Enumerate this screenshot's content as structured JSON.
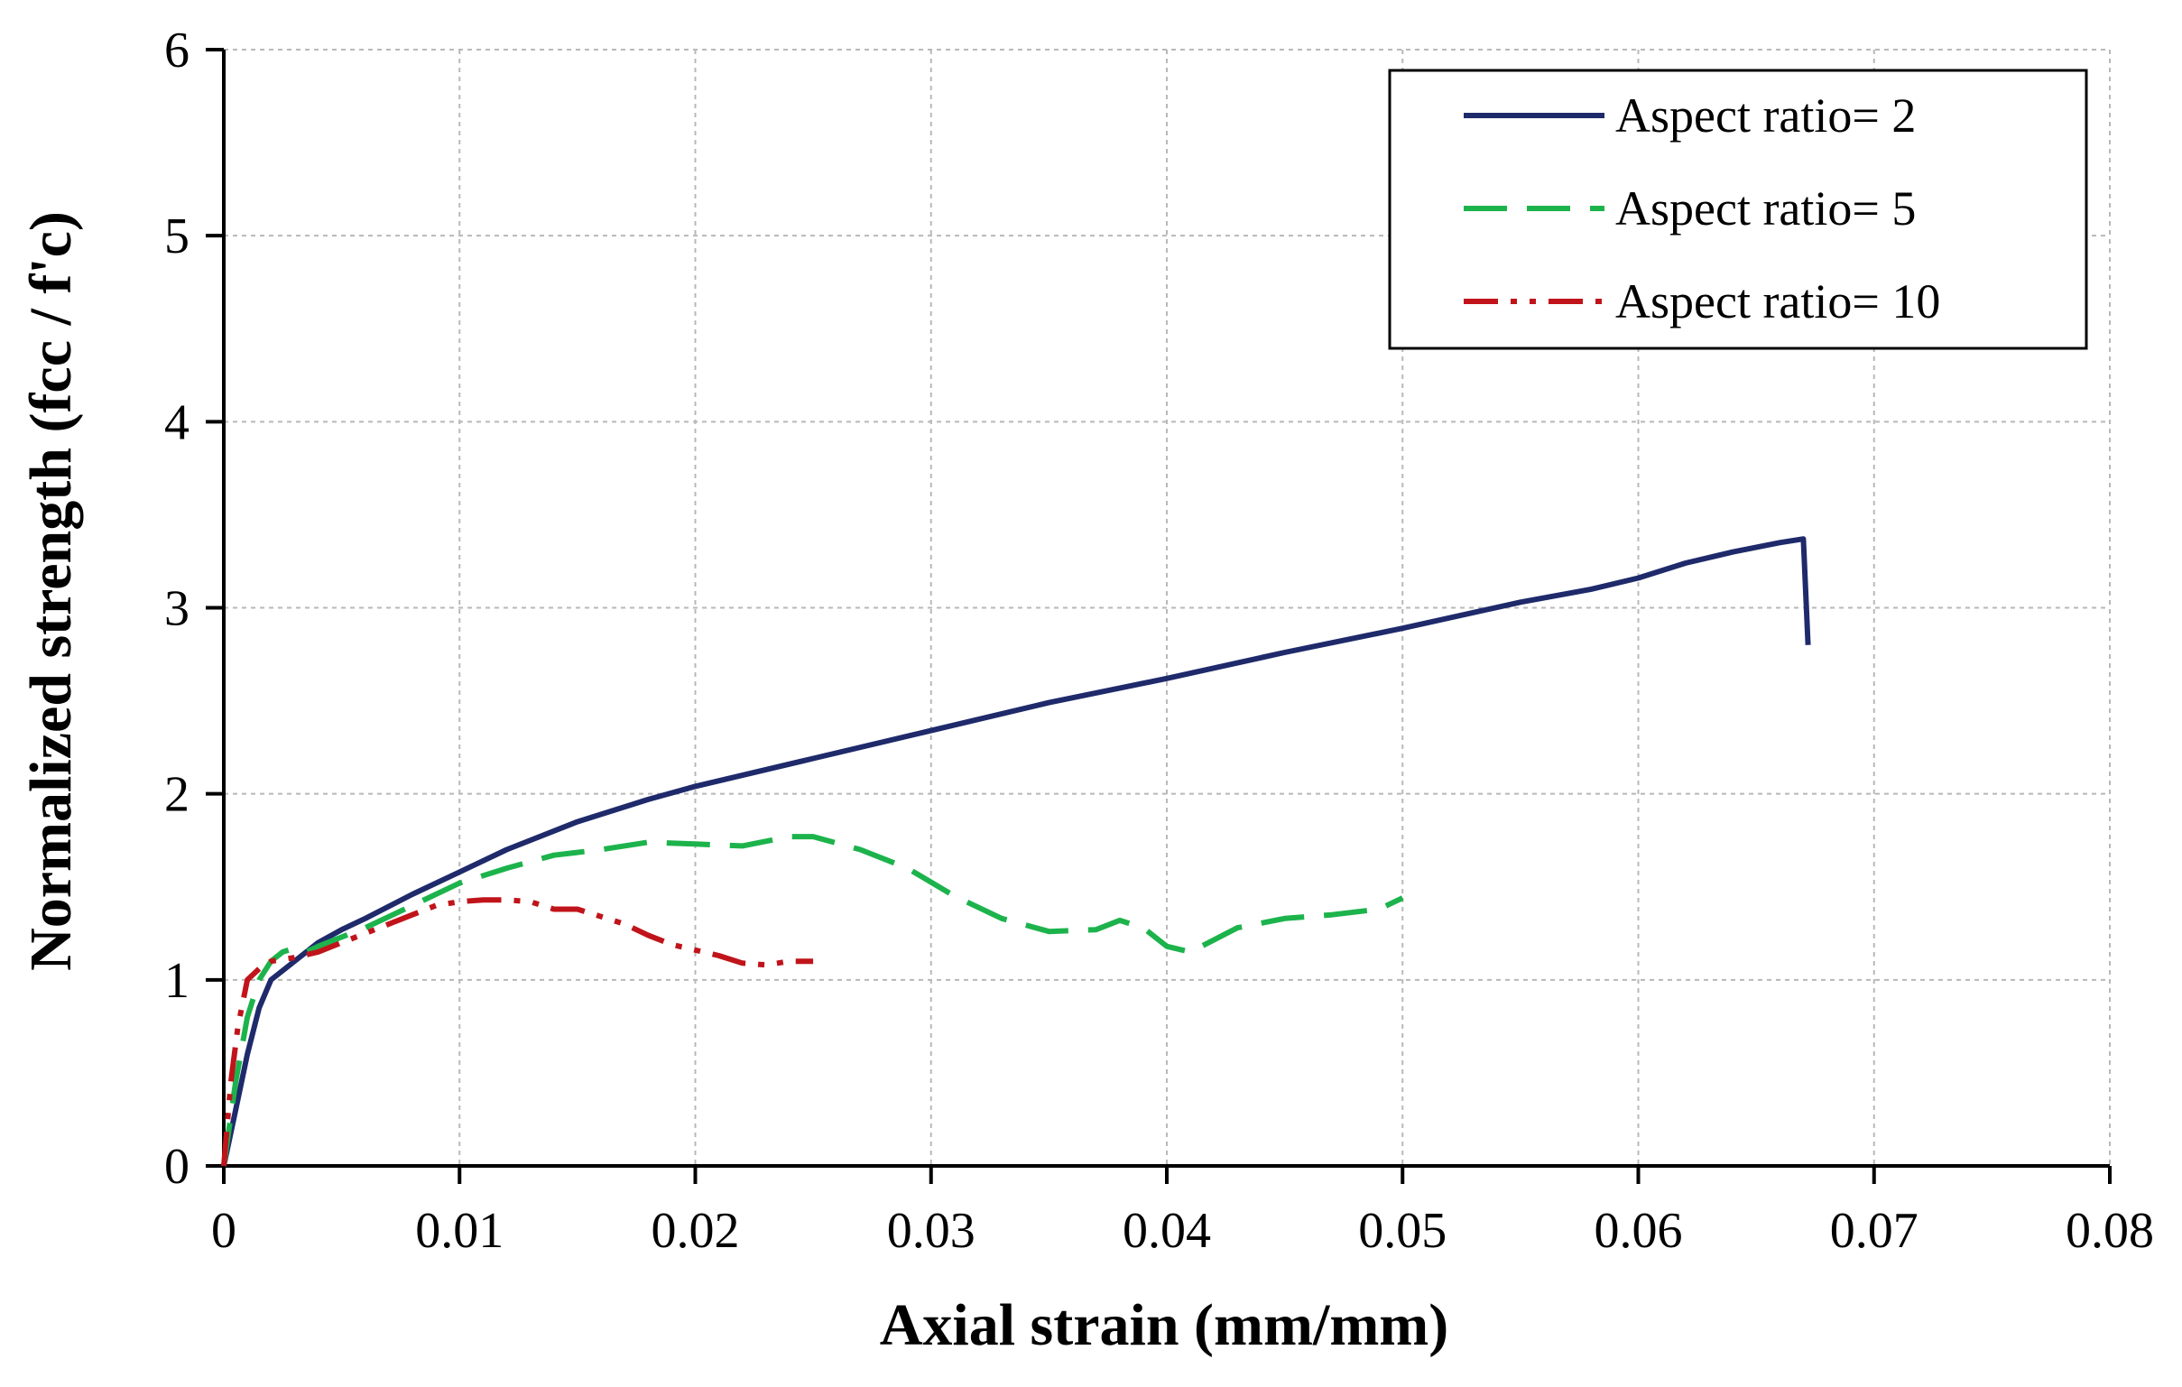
{
  "chart_data": {
    "type": "line",
    "title": "",
    "xlabel": "Axial strain (mm/mm)",
    "ylabel": "Normalized strength (fcc / f'c)",
    "xlim": [
      0,
      0.08
    ],
    "ylim": [
      0,
      6
    ],
    "x_ticks": [
      0,
      0.01,
      0.02,
      0.03,
      0.04,
      0.05,
      0.06,
      0.07,
      0.08
    ],
    "x_tick_labels": [
      "0",
      "0.01",
      "0.02",
      "0.03",
      "0.04",
      "0.05",
      "0.06",
      "0.07",
      "0.08"
    ],
    "y_ticks": [
      0,
      1,
      2,
      3,
      4,
      5,
      6
    ],
    "y_tick_labels": [
      "0",
      "1",
      "2",
      "3",
      "4",
      "5",
      "6"
    ],
    "grid": true,
    "legend_position": "top-right",
    "series": [
      {
        "name": "Aspect ratio= 2",
        "color": "#1f2a6b",
        "dash": "solid",
        "x": [
          0,
          0.0005,
          0.001,
          0.0015,
          0.002,
          0.003,
          0.004,
          0.005,
          0.006,
          0.008,
          0.01,
          0.012,
          0.015,
          0.018,
          0.02,
          0.025,
          0.03,
          0.035,
          0.04,
          0.045,
          0.05,
          0.055,
          0.058,
          0.06,
          0.062,
          0.064,
          0.066,
          0.067,
          0.0672
        ],
        "y": [
          0,
          0.3,
          0.6,
          0.85,
          1.0,
          1.1,
          1.2,
          1.27,
          1.33,
          1.46,
          1.58,
          1.7,
          1.85,
          1.97,
          2.04,
          2.19,
          2.34,
          2.49,
          2.62,
          2.76,
          2.89,
          3.03,
          3.1,
          3.16,
          3.24,
          3.3,
          3.35,
          3.37,
          2.8
        ]
      },
      {
        "name": "Aspect ratio= 5",
        "color": "#1db34c",
        "dash": "long-dash",
        "x": [
          0,
          0.0005,
          0.001,
          0.0015,
          0.002,
          0.0025,
          0.003,
          0.0035,
          0.004,
          0.006,
          0.008,
          0.01,
          0.012,
          0.014,
          0.016,
          0.018,
          0.02,
          0.022,
          0.024,
          0.025,
          0.027,
          0.029,
          0.031,
          0.033,
          0.035,
          0.037,
          0.038,
          0.039,
          0.04,
          0.041,
          0.043,
          0.045,
          0.047,
          0.049,
          0.05
        ],
        "y": [
          0,
          0.45,
          0.8,
          1.0,
          1.1,
          1.15,
          1.17,
          1.15,
          1.18,
          1.28,
          1.4,
          1.52,
          1.6,
          1.67,
          1.7,
          1.74,
          1.73,
          1.72,
          1.77,
          1.77,
          1.7,
          1.6,
          1.45,
          1.33,
          1.26,
          1.27,
          1.32,
          1.28,
          1.18,
          1.15,
          1.28,
          1.33,
          1.35,
          1.38,
          1.44
        ]
      },
      {
        "name": "Aspect ratio= 10",
        "color": "#c0141a",
        "dash": "dash-dot-dot",
        "x": [
          0,
          0.0003,
          0.0006,
          0.001,
          0.0015,
          0.002,
          0.003,
          0.004,
          0.005,
          0.006,
          0.007,
          0.008,
          0.009,
          0.01,
          0.011,
          0.012,
          0.013,
          0.014,
          0.015,
          0.016,
          0.017,
          0.018,
          0.019,
          0.02,
          0.021,
          0.022,
          0.023,
          0.024,
          0.025
        ],
        "y": [
          0,
          0.45,
          0.75,
          1.0,
          1.06,
          1.1,
          1.12,
          1.15,
          1.2,
          1.25,
          1.3,
          1.35,
          1.4,
          1.42,
          1.43,
          1.43,
          1.42,
          1.38,
          1.38,
          1.34,
          1.3,
          1.24,
          1.19,
          1.16,
          1.13,
          1.09,
          1.08,
          1.1,
          1.1
        ]
      }
    ]
  }
}
